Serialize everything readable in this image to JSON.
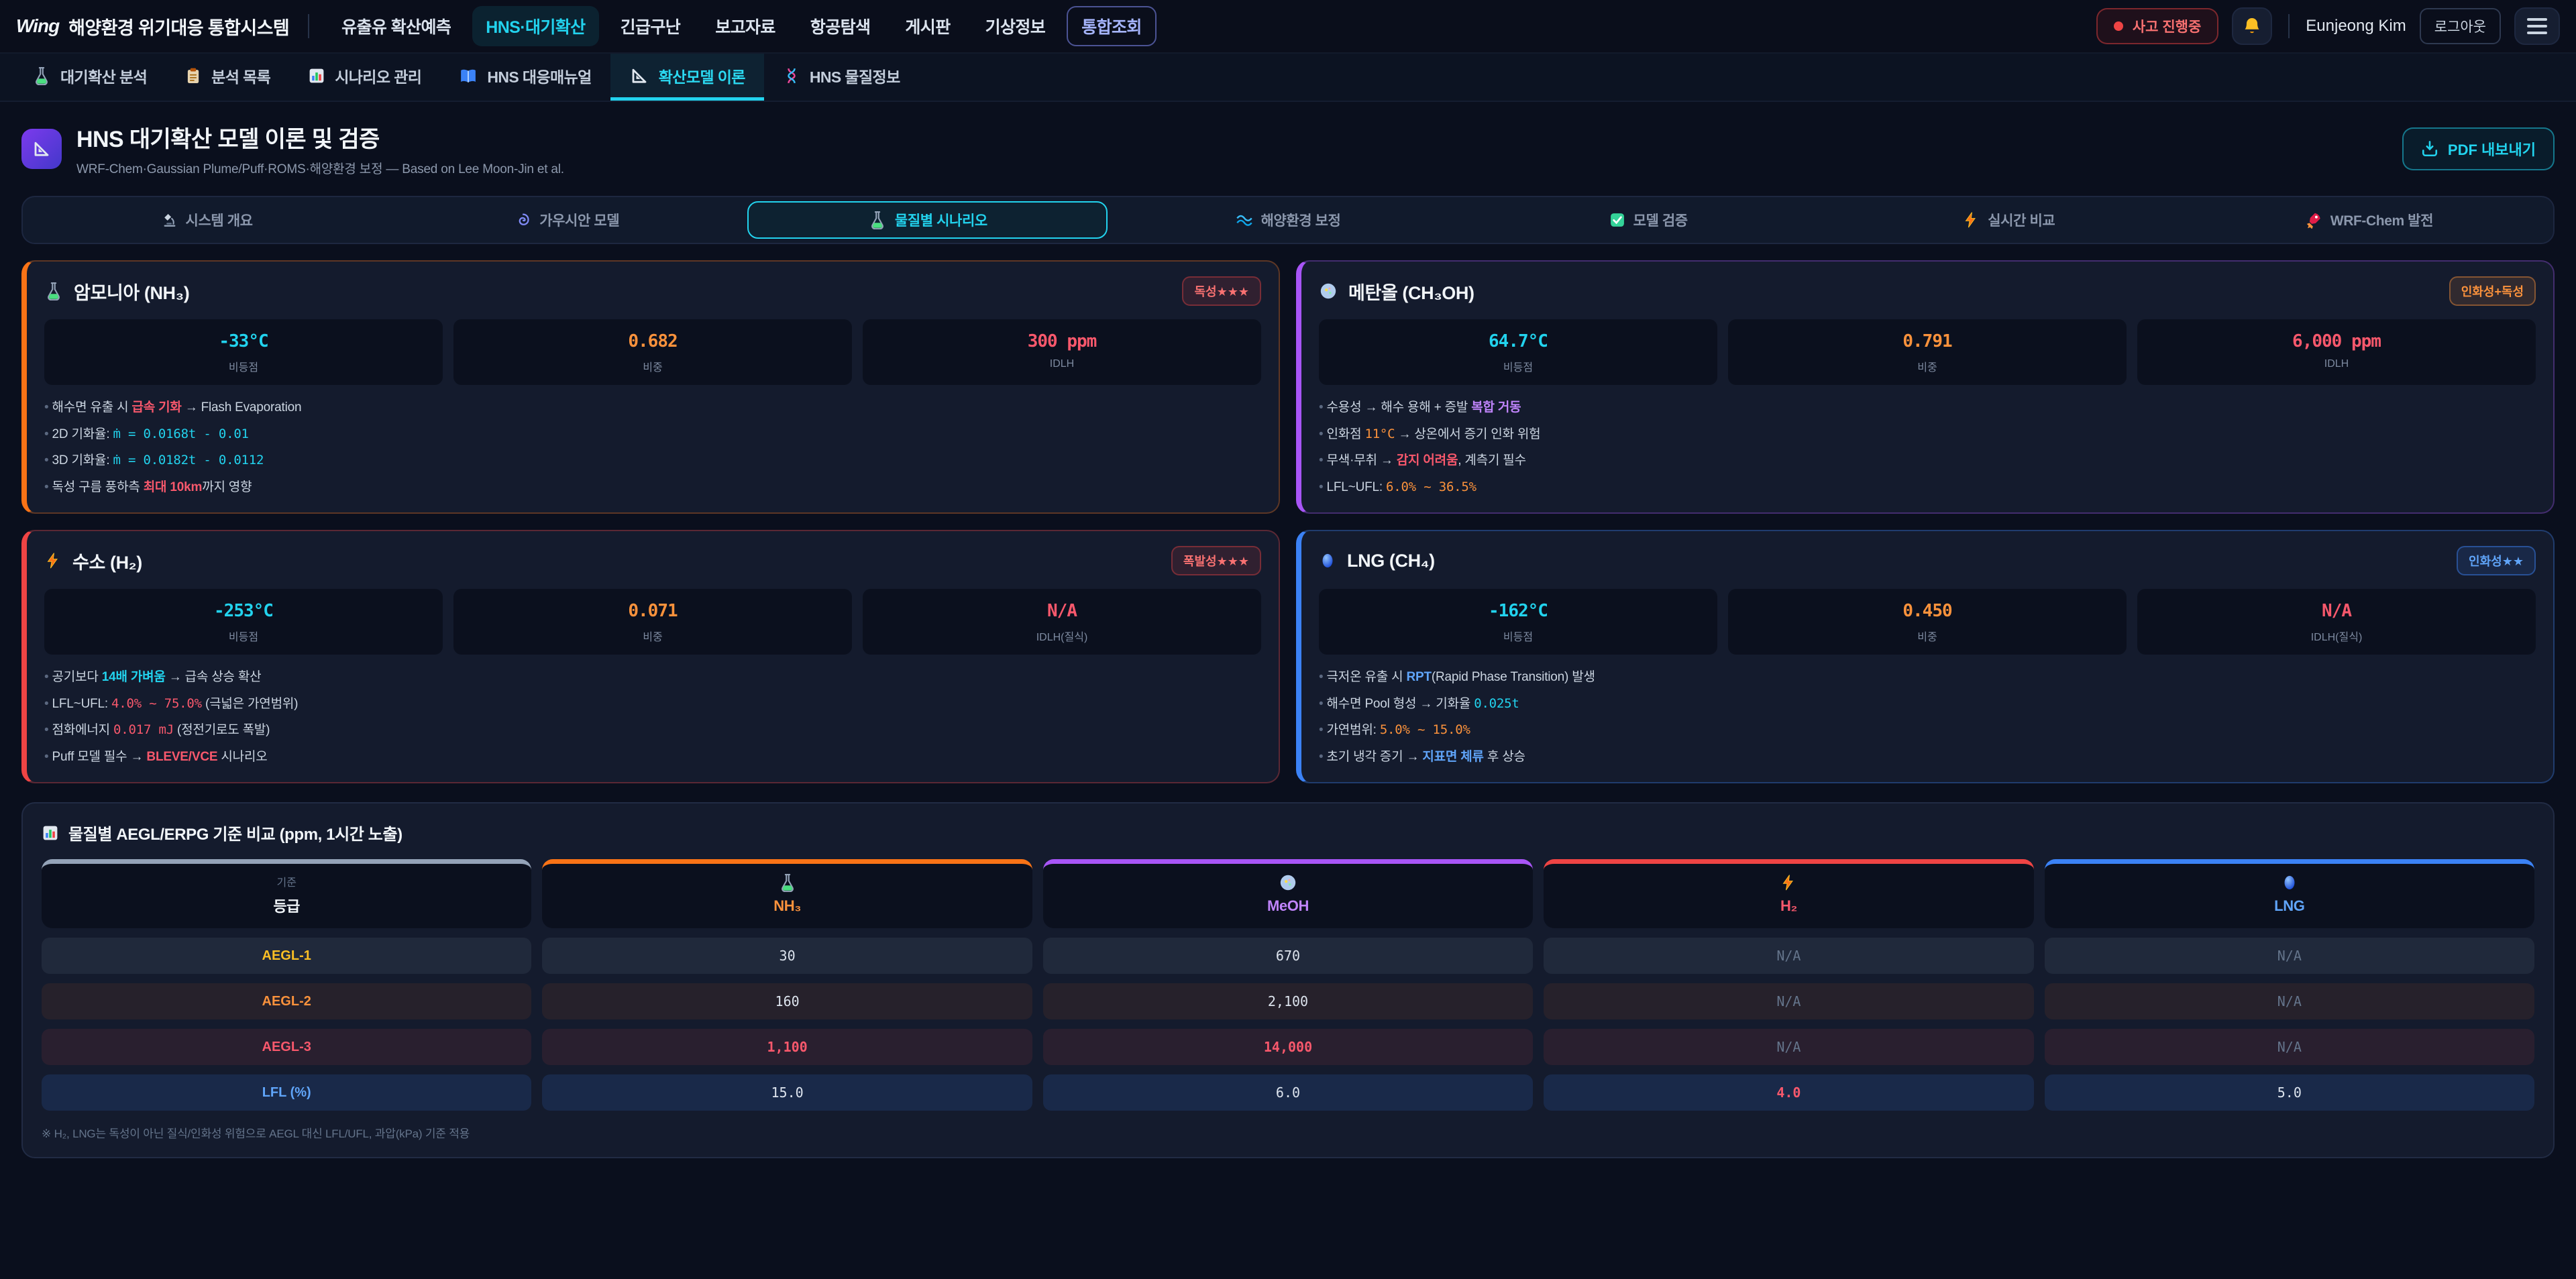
{
  "topnav": {
    "logo_mark": "Wing",
    "logo_text": "해양환경 위기대응 통합시스템",
    "items": [
      {
        "label": "유출유 확산예측"
      },
      {
        "label": "HNS·대기확산",
        "active": true
      },
      {
        "label": "긴급구난"
      },
      {
        "label": "보고자료"
      },
      {
        "label": "항공탐색"
      },
      {
        "label": "게시판"
      },
      {
        "label": "기상정보"
      },
      {
        "label": "통합조회",
        "variant": "outline"
      }
    ],
    "incident_badge": "사고 진행중",
    "bell_icon": "bell",
    "user_name": "Eunjeong Kim",
    "logout_label": "로그아웃"
  },
  "subnav": [
    {
      "icon": "test-tube",
      "label": "대기확산 분석"
    },
    {
      "icon": "clipboard",
      "label": "분석 목록"
    },
    {
      "icon": "bar-chart",
      "label": "시나리오 관리"
    },
    {
      "icon": "book",
      "label": "HNS 대응매뉴얼"
    },
    {
      "icon": "ruler-triangle",
      "label": "확산모델 이론",
      "active": true
    },
    {
      "icon": "dna",
      "label": "HNS 물질정보"
    }
  ],
  "header": {
    "icon": "ruler-triangle",
    "title": "HNS 대기확산 모델 이론 및 검증",
    "subtitle": "WRF-Chem·Gaussian Plume/Puff·ROMS·해양환경 보정 — Based on Lee Moon-Jin et al.",
    "export_label": "PDF 내보내기",
    "accent_cyan": "#22d3ee"
  },
  "tabs": [
    {
      "icon": "microscope",
      "label": "시스템 개요"
    },
    {
      "icon": "spiral",
      "label": "가우시안 모델"
    },
    {
      "icon": "test-tube",
      "label": "물질별 시나리오",
      "active": true
    },
    {
      "icon": "wave",
      "label": "해양환경 보정"
    },
    {
      "icon": "check",
      "label": "모델 검증"
    },
    {
      "icon": "bolt",
      "label": "실시간 비교"
    },
    {
      "icon": "rocket",
      "label": "WRF-Chem 발전"
    }
  ],
  "cards": [
    {
      "id": "nh3",
      "icon": "test-tube",
      "title": "암모니아 (NH₃)",
      "badge": {
        "label": "독성★★★",
        "style": "red"
      },
      "accent": "#f97316",
      "stats": [
        {
          "value": "-33°C",
          "color": "cyan",
          "label": "비등점"
        },
        {
          "value": "0.682",
          "color": "orange",
          "label": "비중"
        },
        {
          "value": "300 ppm",
          "color": "red",
          "label": "IDLH"
        }
      ],
      "bullets": [
        [
          {
            "t": "해수면 유출 시 "
          },
          {
            "t": "급속 기화",
            "c": "hl-red"
          },
          {
            "t": " → Flash Evaporation"
          }
        ],
        [
          {
            "t": "2D 기화율: "
          },
          {
            "t": "ṁ = 0.0168t - 0.01",
            "c": "mono-cyan"
          }
        ],
        [
          {
            "t": "3D 기화율: "
          },
          {
            "t": "ṁ = 0.0182t - 0.0112",
            "c": "mono-cyan"
          }
        ],
        [
          {
            "t": "독성 구름 풍하측 "
          },
          {
            "t": "최대 10km",
            "c": "hl-red"
          },
          {
            "t": "까지 영향"
          }
        ]
      ]
    },
    {
      "id": "meoh",
      "icon": "petri",
      "title": "메탄올 (CH₃OH)",
      "badge": {
        "label": "인화성+독성",
        "style": "orange"
      },
      "accent": "#a855f7",
      "stats": [
        {
          "value": "64.7°C",
          "color": "cyan",
          "label": "비등점"
        },
        {
          "value": "0.791",
          "color": "orange",
          "label": "비중"
        },
        {
          "value": "6,000 ppm",
          "color": "red",
          "label": "IDLH"
        }
      ],
      "bullets": [
        [
          {
            "t": "수용성 → 해수 용해 + 증발 "
          },
          {
            "t": "복합 거동",
            "c": "hl-purple"
          }
        ],
        [
          {
            "t": "인화점 "
          },
          {
            "t": "11°C",
            "c": "mono-orange"
          },
          {
            "t": " → 상온에서 증기 인화 위험"
          }
        ],
        [
          {
            "t": "무색·무취 → "
          },
          {
            "t": "감지 어려움",
            "c": "hl-red"
          },
          {
            "t": ", 계측기 필수"
          }
        ],
        [
          {
            "t": "LFL~UFL: "
          },
          {
            "t": "6.0% ~ 36.5%",
            "c": "mono-orange"
          }
        ]
      ]
    },
    {
      "id": "h2",
      "icon": "bolt",
      "title": "수소 (H₂)",
      "badge": {
        "label": "폭발성★★★",
        "style": "red"
      },
      "accent": "#ef4444",
      "stats": [
        {
          "value": "-253°C",
          "color": "cyan",
          "label": "비등점"
        },
        {
          "value": "0.071",
          "color": "orange",
          "label": "비중"
        },
        {
          "value": "N/A",
          "color": "red",
          "label": "IDLH(질식)"
        }
      ],
      "bullets": [
        [
          {
            "t": "공기보다 "
          },
          {
            "t": "14배 가벼움",
            "c": "hl-cyan"
          },
          {
            "t": " → 급속 상승 확산"
          }
        ],
        [
          {
            "t": "LFL~UFL: "
          },
          {
            "t": "4.0% ~ 75.0%",
            "c": "mono-red"
          },
          {
            "t": " (극넓은 가연범위)"
          }
        ],
        [
          {
            "t": "점화에너지 "
          },
          {
            "t": "0.017 mJ",
            "c": "mono-red"
          },
          {
            "t": " (정전기로도 폭발)"
          }
        ],
        [
          {
            "t": "Puff 모델 필수 → "
          },
          {
            "t": "BLEVE/VCE",
            "c": "hl-red"
          },
          {
            "t": " 시나리오"
          }
        ]
      ]
    },
    {
      "id": "lng",
      "icon": "sphere",
      "title": "LNG (CH₄)",
      "badge": {
        "label": "인화성★★",
        "style": "blue"
      },
      "accent": "#3b82f6",
      "stats": [
        {
          "value": "-162°C",
          "color": "cyan",
          "label": "비등점"
        },
        {
          "value": "0.450",
          "color": "orange",
          "label": "비중"
        },
        {
          "value": "N/A",
          "color": "red",
          "label": "IDLH(질식)"
        }
      ],
      "bullets": [
        [
          {
            "t": "극저온 유출 시 "
          },
          {
            "t": "RPT",
            "c": "hl-blue"
          },
          {
            "t": "(Rapid Phase Transition) 발생"
          }
        ],
        [
          {
            "t": "해수면 Pool 형성 → 기화율 "
          },
          {
            "t": "0.025t",
            "c": "mono-cyan"
          }
        ],
        [
          {
            "t": "가연범위: "
          },
          {
            "t": "5.0% ~ 15.0%",
            "c": "mono-orange"
          }
        ],
        [
          {
            "t": "초기 냉각 증기 → "
          },
          {
            "t": "지표면 체류",
            "c": "hl-blue"
          },
          {
            "t": " 후 상승"
          }
        ]
      ]
    }
  ],
  "comparison_table": {
    "title_icon": "bar-chart",
    "title": "물질별 AEGL/ERPG 기준 비교 (ppm, 1시간 노출)",
    "columns": [
      {
        "sub": "기준",
        "label": "등급",
        "color": "#94a3b8",
        "label_color": "#f1f5f9"
      },
      {
        "icon": "test-tube",
        "label": "NH₃",
        "color": "#f97316",
        "label_color": "#fb923c"
      },
      {
        "icon": "petri",
        "label": "MeOH",
        "color": "#a855f7",
        "label_color": "#c084fc"
      },
      {
        "icon": "bolt",
        "label": "H₂",
        "color": "#ef4444",
        "label_color": "#f8586c"
      },
      {
        "icon": "sphere",
        "label": "LNG",
        "color": "#3b82f6",
        "label_color": "#60a5fa"
      }
    ],
    "rows": [
      {
        "label": "AEGL-1",
        "label_color": "#fbbf24",
        "tint": "tint-gray",
        "values": [
          {
            "v": "30"
          },
          {
            "v": "670"
          },
          {
            "v": "N/A",
            "c": "muted"
          },
          {
            "v": "N/A",
            "c": "muted"
          }
        ]
      },
      {
        "label": "AEGL-2",
        "label_color": "#fb923c",
        "tint": "tint-orange",
        "values": [
          {
            "v": "160"
          },
          {
            "v": "2,100"
          },
          {
            "v": "N/A",
            "c": "muted"
          },
          {
            "v": "N/A",
            "c": "muted"
          }
        ]
      },
      {
        "label": "AEGL-3",
        "label_color": "#f8586c",
        "tint": "tint-red",
        "values": [
          {
            "v": "1,100",
            "c": "redv"
          },
          {
            "v": "14,000",
            "c": "redv"
          },
          {
            "v": "N/A",
            "c": "muted"
          },
          {
            "v": "N/A",
            "c": "muted"
          }
        ]
      },
      {
        "label": "LFL (%)",
        "label_color": "#60a5fa",
        "tint": "tint-blue",
        "values": [
          {
            "v": "15.0"
          },
          {
            "v": "6.0"
          },
          {
            "v": "4.0",
            "c": "redv"
          },
          {
            "v": "5.0"
          }
        ]
      }
    ],
    "footnote": "※ H₂, LNG는 독성이 아닌 질식/인화성 위험으로 AEGL 대신 LFL/UFL, 과압(kPa) 기준 적용"
  }
}
